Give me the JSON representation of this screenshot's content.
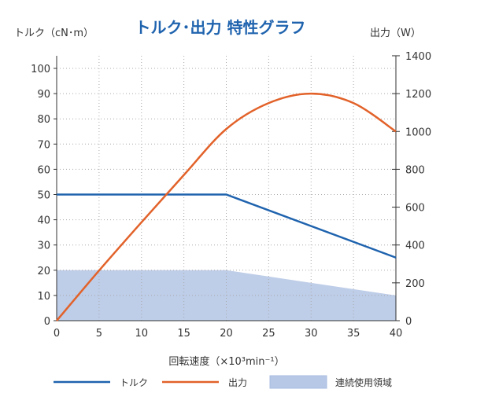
{
  "chart_data": {
    "type": "line",
    "title": "トルク･出力  特性グラフ",
    "xlabel": "回転速度（×10³min⁻¹）",
    "ylabel_left": "トルク（cN･m）",
    "ylabel_right": "出力（W）",
    "xlim": [
      0,
      40
    ],
    "ylim_left": [
      0,
      100
    ],
    "ylim_right": [
      0,
      1400
    ],
    "x_ticks": [
      0,
      5,
      10,
      15,
      20,
      25,
      30,
      35,
      40
    ],
    "y_left_ticks": [
      0,
      10,
      20,
      30,
      40,
      50,
      60,
      70,
      80,
      90,
      100
    ],
    "y_right_ticks": [
      0,
      200,
      400,
      600,
      800,
      1000,
      1200,
      1400
    ],
    "grid": true,
    "legend_position": "bottom",
    "series": [
      {
        "name": "トルク",
        "axis": "left",
        "color": "#1f63ae",
        "x": [
          0,
          20,
          40
        ],
        "values": [
          50,
          50,
          25
        ]
      },
      {
        "name": "出力",
        "axis": "right",
        "color": "#e2622a",
        "x": [
          0,
          5,
          10,
          15,
          20,
          25,
          30,
          35,
          40
        ],
        "values": [
          0,
          265,
          520,
          770,
          1013,
          1150,
          1200,
          1150,
          1000
        ]
      },
      {
        "name": "連続使用領域",
        "type": "area",
        "axis": "left",
        "color": "#b7c8e6",
        "x": [
          0,
          20,
          40
        ],
        "values": [
          20,
          20,
          10
        ]
      }
    ]
  }
}
